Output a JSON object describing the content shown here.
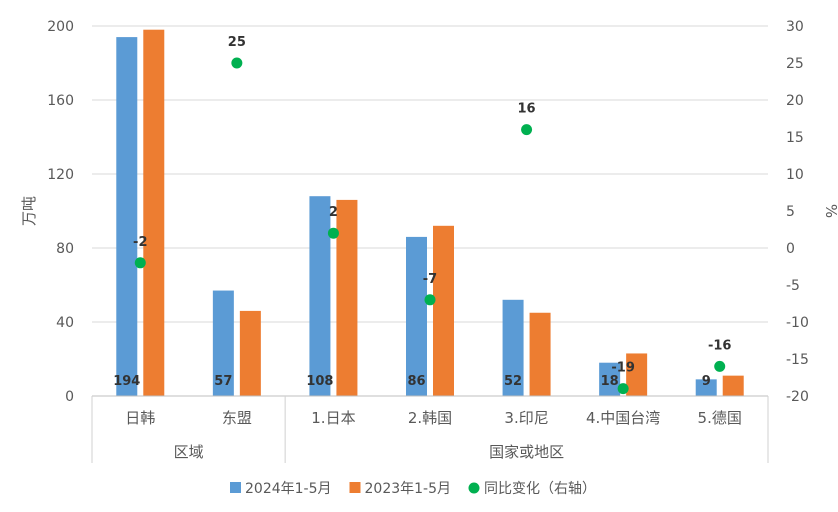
{
  "chart_data": {
    "type": "bar",
    "title": "",
    "ylabel": "万吨",
    "y2label": "%",
    "ylim": [
      0,
      200
    ],
    "y2lim": [
      -20,
      30
    ],
    "yticks": [
      0,
      40,
      80,
      120,
      160,
      200
    ],
    "y2ticks": [
      -20,
      -15,
      -10,
      -5,
      0,
      5,
      10,
      15,
      20,
      25,
      30
    ],
    "grid": true,
    "legend_position": "bottom",
    "categories": [
      "日韩",
      "东盟",
      "1.日本",
      "2.韩国",
      "3.印尼",
      "4.中国台湾",
      "5.德国"
    ],
    "groups": [
      {
        "label": "区域",
        "count": 2
      },
      {
        "label": "国家或地区",
        "count": 5
      }
    ],
    "series": [
      {
        "name": "2024年1-5月",
        "type": "bar",
        "axis": "left",
        "color": "#5b9bd5",
        "values": [
          194,
          57,
          108,
          86,
          52,
          18,
          9
        ],
        "labels_shown": true
      },
      {
        "name": "2023年1-5月",
        "type": "bar",
        "axis": "left",
        "color": "#ed7d31",
        "values": [
          198,
          46,
          106,
          92,
          45,
          23,
          11
        ],
        "labels_shown": false
      },
      {
        "name": "同比变化（右轴）",
        "type": "scatter",
        "axis": "right",
        "color": "#00b050",
        "values": [
          -2,
          25,
          2,
          -7,
          16,
          -19,
          -16
        ],
        "labels_shown": true
      }
    ]
  }
}
